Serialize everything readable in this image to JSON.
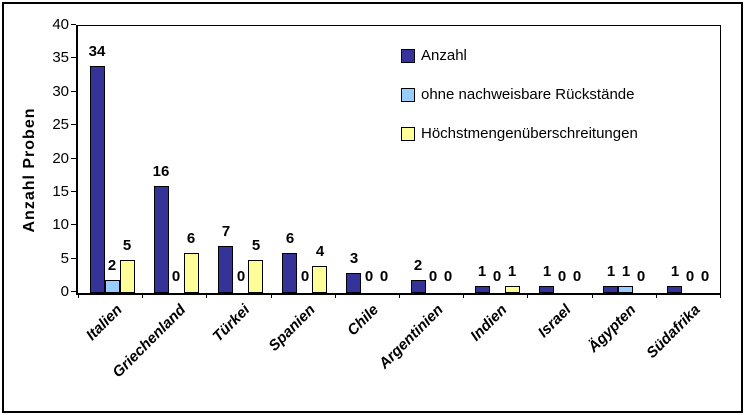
{
  "chart_data": {
    "type": "bar",
    "title": "",
    "xlabel": "",
    "ylabel": "Anzahl Proben",
    "ylim": [
      0,
      40
    ],
    "yticks": [
      0,
      5,
      10,
      15,
      20,
      25,
      30,
      35,
      40
    ],
    "grid": false,
    "plot_background": "#ffffff",
    "legend_position": "inside-top-right",
    "categories": [
      "Italien",
      "Griechenland",
      "Türkei",
      "Spanien",
      "Chile",
      "Argentinien",
      "Indien",
      "Israel",
      "Ägypten",
      "Südafrika"
    ],
    "series": [
      {
        "name": "Anzahl",
        "color": "#333399",
        "values": [
          34,
          16,
          7,
          6,
          3,
          2,
          1,
          1,
          1,
          1
        ]
      },
      {
        "name": "ohne nachweisbare Rückstände",
        "color": "#99CCFF",
        "values": [
          2,
          0,
          0,
          0,
          0,
          0,
          0,
          0,
          1,
          0
        ]
      },
      {
        "name": "Höchstmengenüberschreitungen",
        "color": "#FFFF99",
        "values": [
          5,
          6,
          5,
          4,
          0,
          0,
          1,
          0,
          0,
          0
        ]
      }
    ],
    "bar_border_color": "#000000",
    "axis_color": "#000000"
  }
}
